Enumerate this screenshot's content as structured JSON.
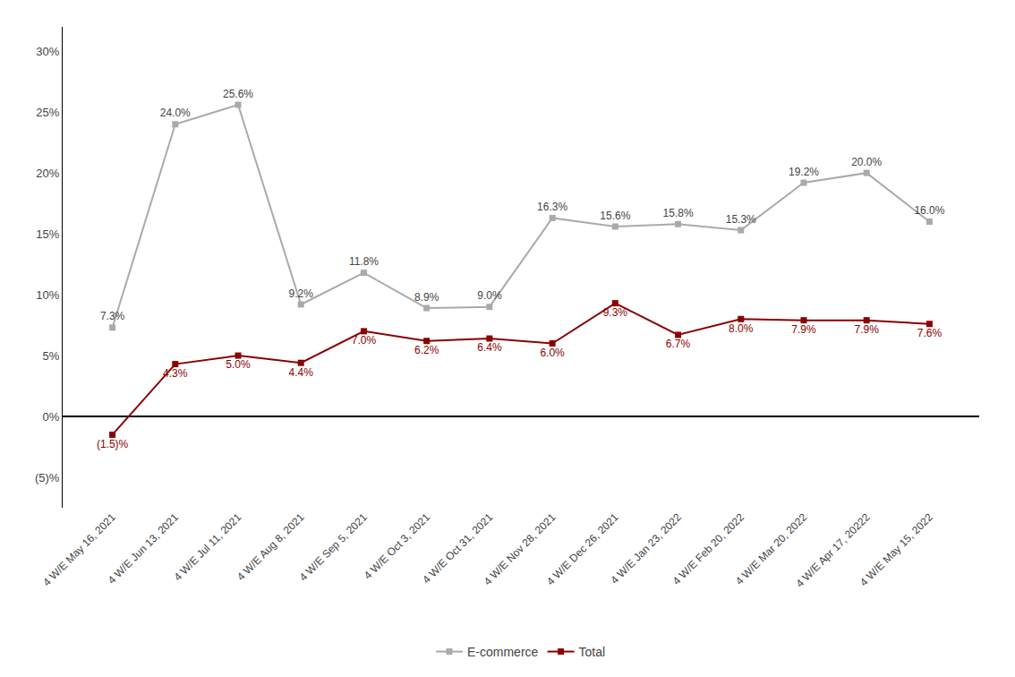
{
  "chart_data": {
    "type": "line",
    "categories": [
      "4 W/E May 16, 2021",
      "4 W/E Jun 13, 2021",
      "4 W/E Jul 11, 2021",
      "4 W/E Aug 8, 2021",
      "4 W/E Sep 5, 2021",
      "4 W/E Oct 3, 2021",
      "4 W/E Oct 31, 2021",
      "4 W/E Nov 28, 2021",
      "4 W/E Dec 26, 2021",
      "4 W/E Jan 23, 2022",
      "4 W/E Feb 20, 2022",
      "4 W/E Mar 20, 2022",
      "4 W/E Apr 17, 20222",
      "4 W/E May 15, 2022"
    ],
    "series": [
      {
        "name": "E-commerce",
        "color": "#aaaaaa",
        "values": [
          7.3,
          24.0,
          25.6,
          9.2,
          11.8,
          8.9,
          9.0,
          16.3,
          15.6,
          15.8,
          15.3,
          19.2,
          20.0,
          16.0
        ],
        "value_labels": [
          "7.3%",
          "24.0%",
          "25.6%",
          "9.2%",
          "11.8%",
          "8.9%",
          "9.0%",
          "16.3%",
          "15.6%",
          "15.8%",
          "15.3%",
          "19.2%",
          "20.0%",
          "16.0%"
        ]
      },
      {
        "name": "Total",
        "color": "#8b0000",
        "values": [
          -1.5,
          4.3,
          5.0,
          4.4,
          7.0,
          6.2,
          6.4,
          6.0,
          9.3,
          6.7,
          8.0,
          7.9,
          7.9,
          7.6
        ],
        "value_labels": [
          "(1.5)%",
          "4.3%",
          "5.0%",
          "4.4%",
          "7.0%",
          "6.2%",
          "6.4%",
          "6.0%",
          "9.3%",
          "6.7%",
          "8.0%",
          "7.9%",
          "7.9%",
          "7.6%"
        ]
      }
    ],
    "ylim": [
      -7.5,
      32
    ],
    "yticks": [
      {
        "value": -5,
        "label": "(5)%"
      },
      {
        "value": 0,
        "label": "0%"
      },
      {
        "value": 5,
        "label": "5%"
      },
      {
        "value": 10,
        "label": "10%"
      },
      {
        "value": 15,
        "label": "15%"
      },
      {
        "value": 20,
        "label": "20%"
      },
      {
        "value": 25,
        "label": "25%"
      },
      {
        "value": 30,
        "label": "30%"
      }
    ],
    "grid": false,
    "legend": "bottom",
    "data_labels": true,
    "marker": "square"
  }
}
